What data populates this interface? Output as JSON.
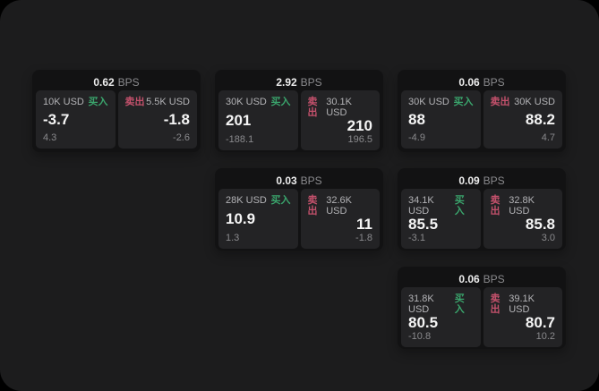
{
  "labels": {
    "buy": "买入",
    "sell": "卖出",
    "bps_unit": "BPS"
  },
  "colors": {
    "buy_green": "#3aa46c",
    "sell_red": "#c4516c",
    "app_background": "#1c1c1d",
    "card_background": "#121213",
    "panel_background": "#232325"
  },
  "cards": [
    {
      "bps": "0.62",
      "buy": {
        "amount": "10K USD",
        "price": "-3.7",
        "delta": "4.3"
      },
      "sell": {
        "amount": "5.5K USD",
        "price": "-1.8",
        "delta": "-2.6"
      }
    },
    {
      "bps": "2.92",
      "buy": {
        "amount": "30K USD",
        "price": "201",
        "delta": "-188.1"
      },
      "sell": {
        "amount": "30.1K USD",
        "price": "210",
        "delta": "196.5"
      }
    },
    {
      "bps": "0.06",
      "buy": {
        "amount": "30K USD",
        "price": "88",
        "delta": "-4.9"
      },
      "sell": {
        "amount": "30K USD",
        "price": "88.2",
        "delta": "4.7"
      }
    },
    {
      "bps": "0.03",
      "buy": {
        "amount": "28K USD",
        "price": "10.9",
        "delta": "1.3"
      },
      "sell": {
        "amount": "32.6K USD",
        "price": "11",
        "delta": "-1.8"
      }
    },
    {
      "bps": "0.09",
      "buy": {
        "amount": "34.1K USD",
        "price": "85.5",
        "delta": "-3.1"
      },
      "sell": {
        "amount": "32.8K USD",
        "price": "85.8",
        "delta": "3.0"
      }
    },
    {
      "bps": "0.06",
      "buy": {
        "amount": "31.8K USD",
        "price": "80.5",
        "delta": "-10.8"
      },
      "sell": {
        "amount": "39.1K USD",
        "price": "80.7",
        "delta": "10.2"
      }
    }
  ]
}
